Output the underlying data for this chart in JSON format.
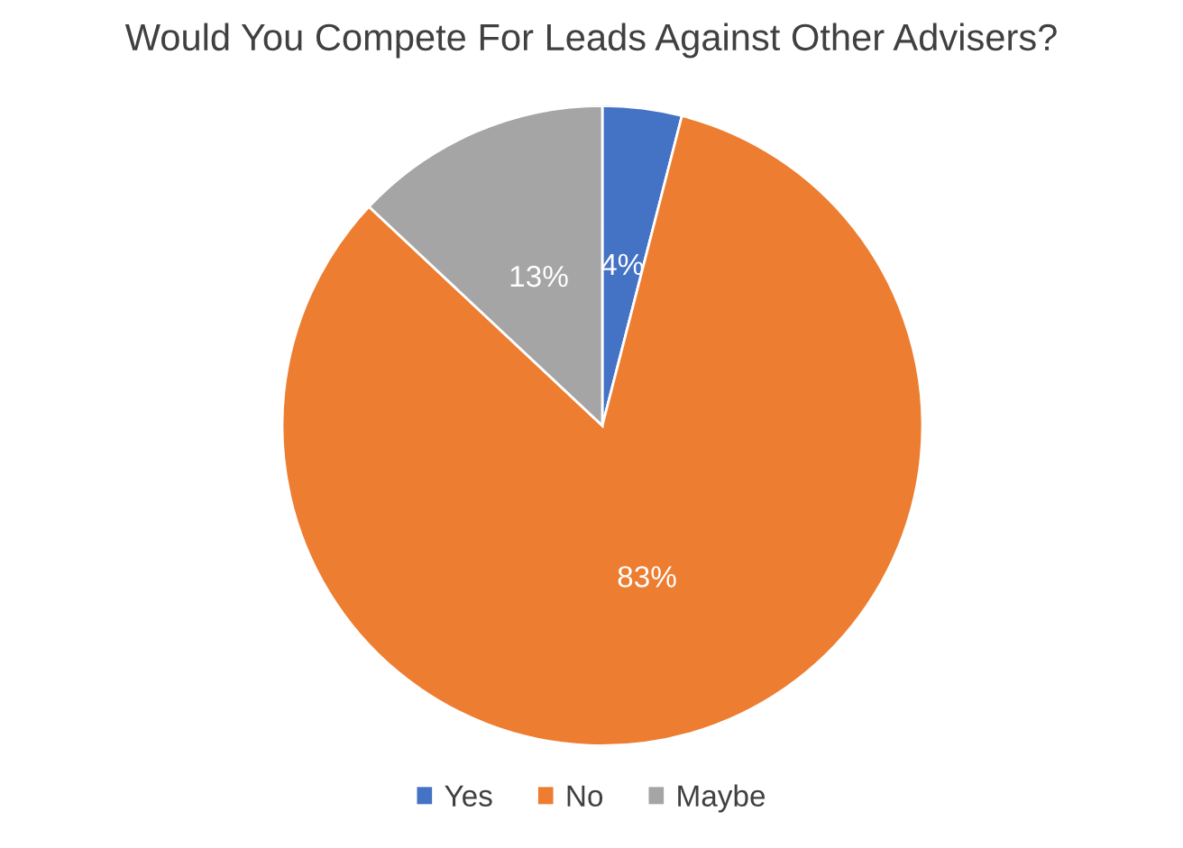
{
  "chart_data": {
    "type": "pie",
    "title": "Would You Compete For Leads Against Other Advisers?",
    "categories": [
      "Yes",
      "No",
      "Maybe"
    ],
    "values": [
      4,
      83,
      13
    ],
    "colors": [
      "#4472c4",
      "#ed7d31",
      "#a5a5a5"
    ],
    "value_labels": [
      "4%",
      "83%",
      "13%"
    ],
    "legend": "bottom"
  }
}
